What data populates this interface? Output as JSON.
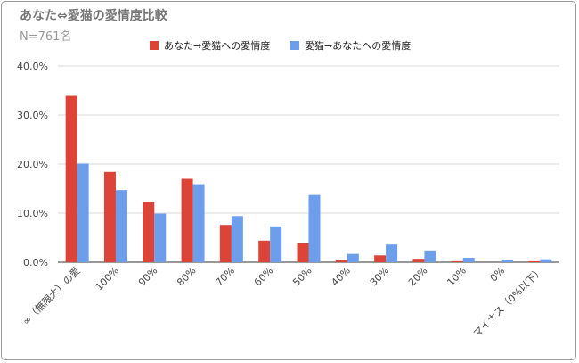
{
  "chart_data": {
    "type": "bar",
    "title": "あなた⇔愛猫の愛情度比較",
    "subtitle": "N=761名",
    "categories": [
      "∞（無限大）の愛",
      "100%",
      "90%",
      "80%",
      "70%",
      "60%",
      "50%",
      "40%",
      "30%",
      "20%",
      "10%",
      "0%",
      "マイナス（0%以下）"
    ],
    "series": [
      {
        "name": "あなた→愛猫への愛情度",
        "color": "#db4437",
        "values": [
          33.9,
          18.4,
          12.3,
          17.0,
          7.6,
          4.4,
          3.9,
          0.4,
          1.4,
          0.7,
          0.2,
          0.0,
          0.2
        ]
      },
      {
        "name": "愛猫→あなたへの愛情度",
        "color": "#6d9eeb",
        "values": [
          20.1,
          14.7,
          9.9,
          15.9,
          9.4,
          7.3,
          13.7,
          1.7,
          3.6,
          2.4,
          0.9,
          0.4,
          0.6
        ]
      }
    ],
    "ylim": [
      0,
      40
    ],
    "yticks": [
      "0.0%",
      "10.0%",
      "20.0%",
      "30.0%",
      "40.0%"
    ],
    "grid": true,
    "legend_position": "top"
  }
}
